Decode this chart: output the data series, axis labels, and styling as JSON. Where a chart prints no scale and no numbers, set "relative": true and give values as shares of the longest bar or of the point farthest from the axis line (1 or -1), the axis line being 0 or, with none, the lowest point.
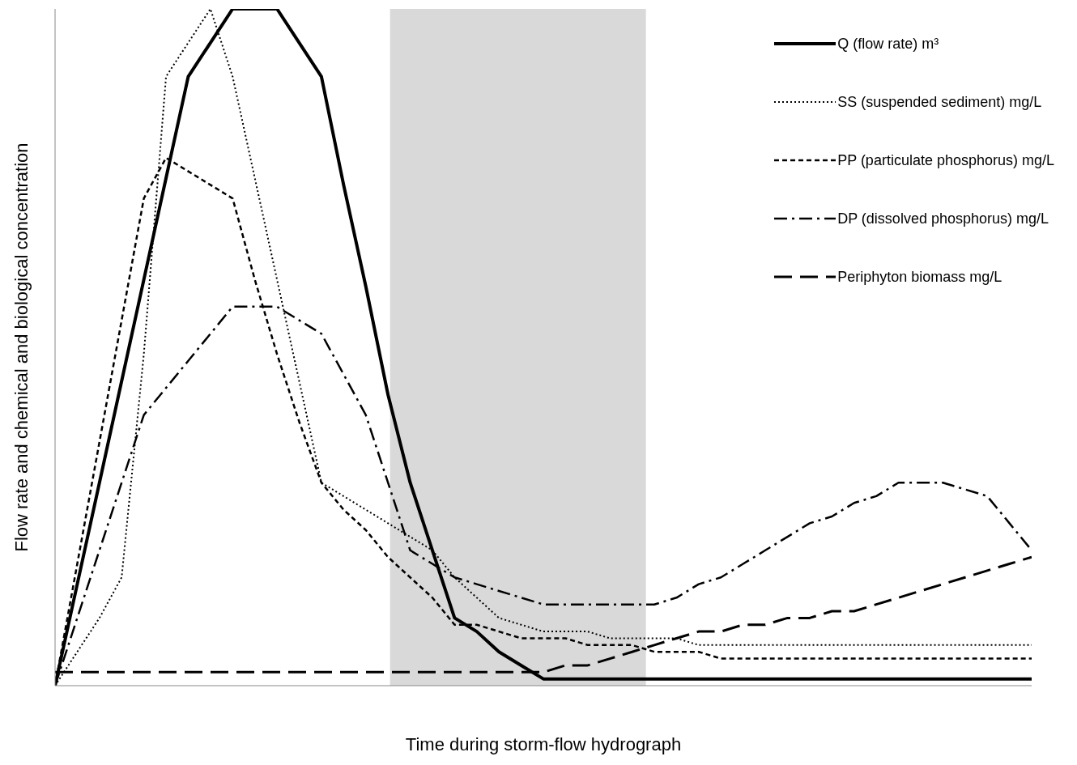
{
  "chart_data": {
    "type": "line",
    "relative": true,
    "xlabel": "Time during storm-flow hydrograph",
    "ylabel": "Flow rate and chemical and biological concentration",
    "categories": [
      null,
      null,
      null,
      null,
      null,
      null,
      null,
      null,
      null,
      null,
      null,
      null,
      null,
      null,
      null,
      null,
      null,
      null,
      null,
      null,
      null,
      null,
      null,
      null,
      null,
      null,
      null,
      null,
      null,
      null,
      null,
      null,
      null,
      null,
      null,
      null,
      null,
      null,
      null,
      null,
      null,
      null,
      null,
      null,
      null
    ],
    "grid": false,
    "legend": "top right",
    "marker": "none",
    "series": [
      {
        "name": "Q (flow rate) m³",
        "color": "#000000",
        "line_style": "solid",
        "values": [
          0,
          0.15,
          0.3,
          0.45,
          0.6,
          0.75,
          0.9,
          0.95,
          1,
          1,
          1,
          0.95,
          0.9,
          0.74,
          0.59,
          0.43,
          0.3,
          0.2,
          0.1,
          0.08,
          0.05,
          0.03,
          0.01,
          0.01,
          0.01,
          0.01,
          0.01,
          0.01,
          0.01,
          0.01,
          0.01,
          0.01,
          0.01,
          0.01,
          0.01,
          0.01,
          0.01,
          0.01,
          0.01,
          0.01,
          0.01,
          0.01,
          0.01,
          0.01,
          0.01
        ]
      },
      {
        "name": "SS (suspended sediment) mg/L",
        "color": "#000000",
        "line_style": "dotted",
        "values": [
          0,
          0.05,
          0.1,
          0.16,
          0.49,
          0.9,
          0.95,
          1,
          0.9,
          0.75,
          0.6,
          0.45,
          0.3,
          0.28,
          0.26,
          0.24,
          0.22,
          0.2,
          0.16,
          0.13,
          0.1,
          0.09,
          0.08,
          0.08,
          0.08,
          0.07,
          0.07,
          0.07,
          0.07,
          0.06,
          0.06,
          0.06,
          0.06,
          0.06,
          0.06,
          0.06,
          0.06,
          0.06,
          0.06,
          0.06,
          0.06,
          0.06,
          0.06,
          0.06,
          0.06
        ]
      },
      {
        "name": "PP (particulate phosphorus) mg/L",
        "color": "#000000",
        "line_style": "dashed",
        "values": [
          0,
          0.18,
          0.36,
          0.54,
          0.72,
          0.78,
          0.76,
          0.74,
          0.72,
          0.6,
          0.49,
          0.39,
          0.3,
          0.26,
          0.23,
          0.19,
          0.16,
          0.13,
          0.09,
          0.09,
          0.08,
          0.07,
          0.07,
          0.07,
          0.06,
          0.06,
          0.06,
          0.05,
          0.05,
          0.05,
          0.04,
          0.04,
          0.04,
          0.04,
          0.04,
          0.04,
          0.04,
          0.04,
          0.04,
          0.04,
          0.04,
          0.04,
          0.04,
          0.04,
          0.04
        ]
      },
      {
        "name": "DP (dissolved phosphorus) mg/L",
        "color": "#000000",
        "line_style": "dashdot",
        "values": [
          0,
          0.1,
          0.2,
          0.3,
          0.4,
          0.44,
          0.48,
          0.52,
          0.56,
          0.56,
          0.56,
          0.54,
          0.52,
          0.46,
          0.4,
          0.3,
          0.2,
          0.18,
          0.16,
          0.15,
          0.14,
          0.13,
          0.12,
          0.12,
          0.12,
          0.12,
          0.12,
          0.12,
          0.13,
          0.15,
          0.16,
          0.18,
          0.2,
          0.22,
          0.24,
          0.25,
          0.27,
          0.28,
          0.3,
          0.3,
          0.3,
          0.29,
          0.28,
          0.24,
          0.2
        ]
      },
      {
        "name": "Periphyton biomass mg/L",
        "color": "#000000",
        "line_style": "longdash",
        "values": [
          0.02,
          0.02,
          0.02,
          0.02,
          0.02,
          0.02,
          0.02,
          0.02,
          0.02,
          0.02,
          0.02,
          0.02,
          0.02,
          0.02,
          0.02,
          0.02,
          0.02,
          0.02,
          0.02,
          0.02,
          0.02,
          0.02,
          0.02,
          0.03,
          0.03,
          0.04,
          0.05,
          0.06,
          0.07,
          0.08,
          0.08,
          0.09,
          0.09,
          0.1,
          0.1,
          0.11,
          0.11,
          0.12,
          0.13,
          0.14,
          0.15,
          0.16,
          0.17,
          0.18,
          0.19
        ]
      }
    ]
  }
}
